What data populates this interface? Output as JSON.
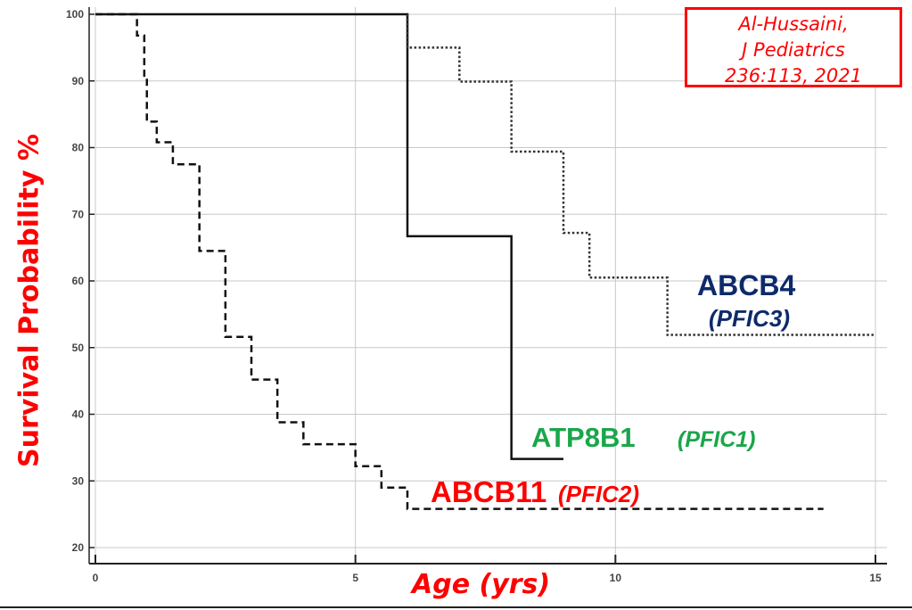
{
  "chart_data": {
    "type": "line",
    "subtype": "kaplan-meier step",
    "title": "",
    "xlabel": "Age (yrs)",
    "ylabel": "Survival Probability %",
    "xlim": [
      0,
      15
    ],
    "ylim": [
      20,
      100
    ],
    "xticks": [
      "0",
      "5",
      "10",
      "15"
    ],
    "yticks": [
      "20",
      "30",
      "40",
      "50",
      "60",
      "70",
      "80",
      "90",
      "100"
    ],
    "grid": true,
    "series": [
      {
        "name": "ABCB11",
        "subname": "(PFIC2)",
        "style": "dashed",
        "label_color": "#ff0000",
        "steps": [
          [
            0,
            100
          ],
          [
            0.8,
            96.8
          ],
          [
            0.94,
            90.5
          ],
          [
            0.99,
            83.9
          ],
          [
            1.18,
            80.8
          ],
          [
            1.49,
            77.5
          ],
          [
            2.0,
            64.5
          ],
          [
            2.5,
            51.6
          ],
          [
            3.0,
            45.2
          ],
          [
            3.5,
            38.8
          ],
          [
            4.0,
            35.5
          ],
          [
            5.0,
            32.2
          ],
          [
            5.5,
            29.0
          ],
          [
            6.0,
            25.8
          ]
        ],
        "end": 14
      },
      {
        "name": "ATP8B1",
        "subname": "(PFIC1)",
        "style": "solid",
        "label_color": "#1aa64a",
        "steps": [
          [
            0,
            100
          ],
          [
            6,
            66.7
          ],
          [
            8,
            33.3
          ]
        ],
        "end": 9
      },
      {
        "name": "ABCB4",
        "subname": "(PFIC3)",
        "style": "dotted",
        "label_color": "#0d2a6b",
        "steps": [
          [
            6,
            100
          ],
          [
            6,
            95.0
          ],
          [
            7,
            89.9
          ],
          [
            8,
            79.4
          ],
          [
            9,
            67.2
          ],
          [
            9.5,
            60.5
          ],
          [
            11,
            51.9
          ]
        ],
        "end": 15
      }
    ],
    "annotation": {
      "lines": [
        "Al-Hussaini,",
        "J Pediatrics",
        "236:113, 2021"
      ],
      "color": "#ff0000"
    }
  }
}
